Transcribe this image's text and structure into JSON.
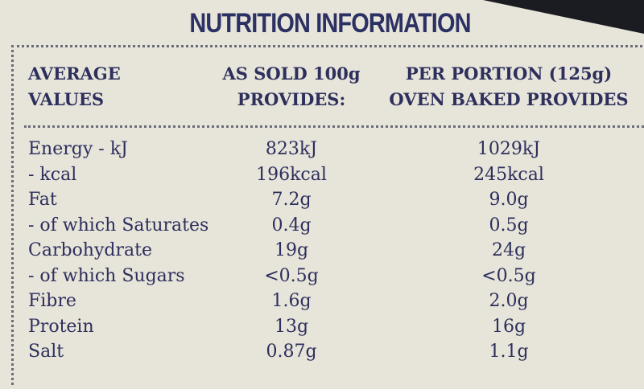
{
  "header": {
    "title": "NUTRITION INFORMATION"
  },
  "table": {
    "columns": [
      [
        "AVERAGE",
        "VALUES"
      ],
      [
        "AS SOLD 100g",
        "PROVIDES:"
      ],
      [
        "PER PORTION (125g)",
        "OVEN BAKED PROVIDES"
      ]
    ],
    "rows": [
      [
        "Energy - kJ",
        "823kJ",
        "1029kJ"
      ],
      [
        "- kcal",
        "196kcal",
        "245kcal"
      ],
      [
        "Fat",
        "7.2g",
        "9.0g"
      ],
      [
        "- of which Saturates",
        "0.4g",
        "0.5g"
      ],
      [
        "Carbohydrate",
        "19g",
        "24g"
      ],
      [
        "- of which Sugars",
        "<0.5g",
        "<0.5g"
      ],
      [
        "Fibre",
        "1.6g",
        "2.0g"
      ],
      [
        "Protein",
        "13g",
        "16g"
      ],
      [
        "Salt",
        "0.87g",
        "1.1g"
      ]
    ]
  }
}
